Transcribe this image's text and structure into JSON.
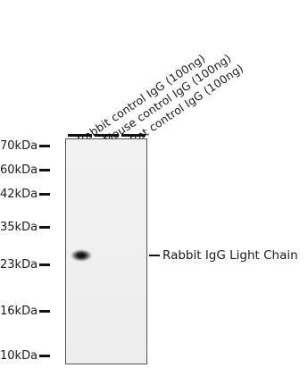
{
  "lanes": [
    {
      "label": "Rabbit control IgG (100ng)"
    },
    {
      "label": "Mouse control IgG (100ng)"
    },
    {
      "label": "Rat control IgG (100ng)"
    }
  ],
  "markers": [
    {
      "label": "70kDa"
    },
    {
      "label": "60kDa"
    },
    {
      "label": "42kDa"
    },
    {
      "label": "35kDa"
    },
    {
      "label": "23kDa"
    },
    {
      "label": "16kDa"
    },
    {
      "label": "10kDa"
    }
  ],
  "band_annotation": "Rabbit IgG Light Chain"
}
